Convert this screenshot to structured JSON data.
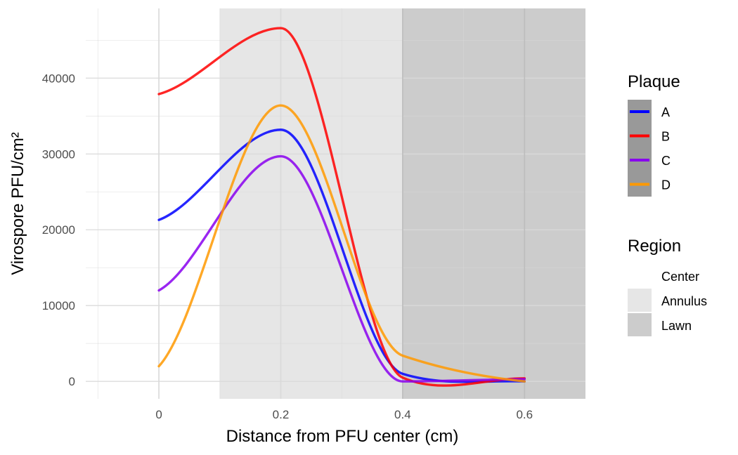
{
  "chart_data": {
    "type": "line",
    "xlabel": "Distance from PFU center (cm)",
    "ylabel": "Virospore PFU/cm²",
    "xlim": [
      -0.12,
      0.7
    ],
    "ylim": [
      -2300,
      49200
    ],
    "x_ticks": [
      0,
      0.2,
      0.4,
      0.6
    ],
    "x_tick_labels": [
      "0",
      "0.2",
      "0.4",
      "0.6"
    ],
    "y_ticks": [
      0,
      10000,
      20000,
      30000,
      40000
    ],
    "y_tick_labels": [
      "0",
      "10000",
      "20000",
      "30000",
      "40000"
    ],
    "grid": true,
    "regions": [
      {
        "name": "Center",
        "x": [
          -0.12,
          0.1
        ],
        "color": "#ffffff"
      },
      {
        "name": "Annulus",
        "x": [
          0.1,
          0.4
        ],
        "color": "#e6e6e6"
      },
      {
        "name": "Lawn",
        "x": [
          0.4,
          0.7
        ],
        "color": "#cccccc"
      }
    ],
    "x": [
      0,
      0.2,
      0.4,
      0.6
    ],
    "series": [
      {
        "name": "A",
        "color": "#0000ff",
        "values": [
          21300,
          33200,
          1000,
          0
        ]
      },
      {
        "name": "B",
        "color": "#ff0000",
        "values": [
          37900,
          46600,
          500,
          400
        ]
      },
      {
        "name": "C",
        "color": "#8800ee",
        "values": [
          12000,
          29700,
          0,
          300
        ]
      },
      {
        "name": "D",
        "color": "#ff9900",
        "values": [
          2000,
          36400,
          3400,
          0
        ]
      }
    ],
    "legend": {
      "placement": "right",
      "plaque_title": "Plaque",
      "region_title": "Region"
    }
  }
}
